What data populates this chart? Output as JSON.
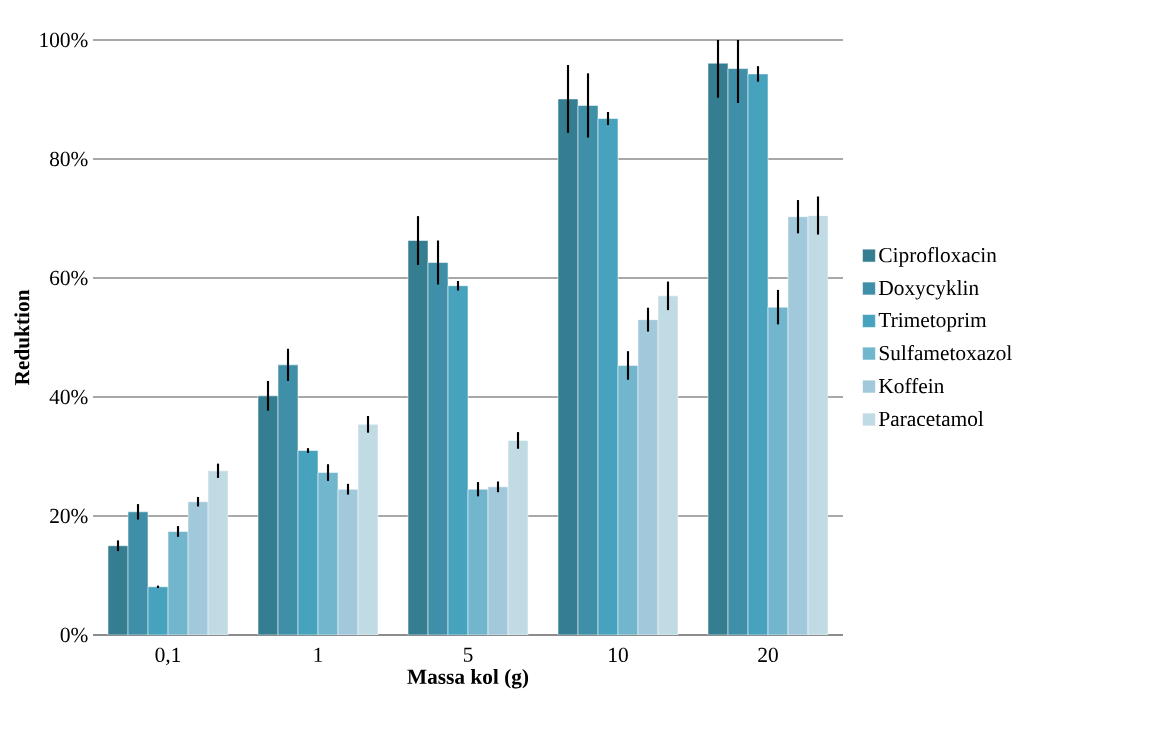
{
  "chart_data": {
    "type": "bar",
    "xlabel": "Massa kol (g)",
    "ylabel": "Reduktion",
    "categories": [
      "0,1",
      "1",
      "5",
      "10",
      "20"
    ],
    "series": [
      {
        "name": "Ciprofloxacin",
        "color": "#357d91",
        "values": [
          15.0,
          40.2,
          66.3,
          90.1,
          96.1
        ],
        "errors": [
          0.9,
          2.5,
          4.1,
          5.7,
          [
            90.3,
            100
          ]
        ]
      },
      {
        "name": "Doxycyklin",
        "color": "#3f8fa8",
        "values": [
          20.7,
          45.4,
          62.6,
          89.0,
          95.2
        ],
        "errors": [
          1.3,
          2.7,
          3.7,
          5.4,
          [
            89.4,
            100
          ]
        ]
      },
      {
        "name": "Trimetoprim",
        "color": "#47a3bd",
        "values": [
          8.1,
          31.0,
          58.7,
          86.8,
          94.3
        ],
        "errors": [
          0.2,
          0.4,
          0.8,
          1.1,
          1.3
        ]
      },
      {
        "name": "Sulfametoxazol",
        "color": "#72b6ce",
        "values": [
          17.4,
          27.3,
          24.5,
          45.3,
          55.1
        ],
        "errors": [
          0.9,
          1.4,
          1.2,
          2.4,
          2.9
        ]
      },
      {
        "name": "Koffein",
        "color": "#a2c9db",
        "values": [
          22.4,
          24.5,
          24.9,
          53.0,
          70.3
        ],
        "errors": [
          0.8,
          0.9,
          0.9,
          2.0,
          2.8
        ]
      },
      {
        "name": "Paracetamol",
        "color": "#c1dbe5",
        "values": [
          27.6,
          35.4,
          32.7,
          57.0,
          70.5
        ],
        "errors": [
          1.2,
          1.4,
          1.4,
          2.4,
          3.2
        ]
      }
    ],
    "ylim": [
      0,
      100
    ],
    "yticks": [
      {
        "value": 0,
        "label": "0%"
      },
      {
        "value": 20,
        "label": "20%"
      },
      {
        "value": 40,
        "label": "40%"
      },
      {
        "value": 60,
        "label": "60%"
      },
      {
        "value": 80,
        "label": "80%"
      },
      {
        "value": 100,
        "label": "100%"
      }
    ],
    "grid": "y",
    "legend": "right"
  }
}
